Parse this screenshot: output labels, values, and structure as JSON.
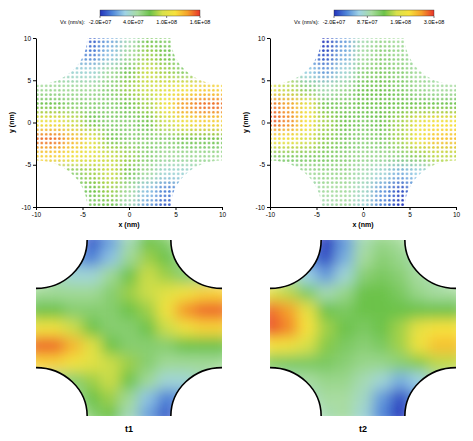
{
  "chart_data": [
    {
      "type": "heatmap",
      "title": "t1",
      "x_label": "x (nm)",
      "y_label": "y (nm)",
      "xlim": [
        -10,
        10
      ],
      "ylim": [
        -10,
        10
      ],
      "xticks": [
        -10,
        -5,
        0,
        5,
        10
      ],
      "yticks": [
        -10,
        -5,
        0,
        5,
        10
      ],
      "x": [
        -10,
        -8,
        -6,
        -4,
        -2,
        0,
        2,
        4,
        6,
        8,
        10
      ],
      "y": [
        10,
        8,
        6,
        4,
        2,
        0,
        -2,
        -4,
        -6,
        -8,
        -10
      ],
      "values": [
        [
          null,
          null,
          null,
          -10000000.0,
          10000000.0,
          40000000.0,
          70000000.0,
          60000000.0,
          null,
          null,
          null
        ],
        [
          null,
          null,
          10000000.0,
          0,
          20000000.0,
          50000000.0,
          80000000.0,
          70000000.0,
          50000000.0,
          null,
          null
        ],
        [
          null,
          40000000.0,
          30000000.0,
          30000000.0,
          50000000.0,
          70000000.0,
          90000000.0,
          80000000.0,
          60000000.0,
          50000000.0,
          null
        ],
        [
          50000000.0,
          50000000.0,
          50000000.0,
          50000000.0,
          60000000.0,
          80000000.0,
          90000000.0,
          100000000.0,
          110000000.0,
          120000000.0,
          120000000.0
        ],
        [
          70000000.0,
          70000000.0,
          60000000.0,
          60000000.0,
          60000000.0,
          70000000.0,
          80000000.0,
          110000000.0,
          140000000.0,
          150000000.0,
          150000000.0
        ],
        [
          110000000.0,
          110000000.0,
          90000000.0,
          70000000.0,
          60000000.0,
          60000000.0,
          70000000.0,
          90000000.0,
          110000000.0,
          120000000.0,
          120000000.0
        ],
        [
          150000000.0,
          150000000.0,
          130000000.0,
          100000000.0,
          70000000.0,
          60000000.0,
          60000000.0,
          60000000.0,
          70000000.0,
          70000000.0,
          70000000.0
        ],
        [
          120000000.0,
          120000000.0,
          110000000.0,
          100000000.0,
          90000000.0,
          80000000.0,
          60000000.0,
          50000000.0,
          50000000.0,
          50000000.0,
          50000000.0
        ],
        [
          null,
          50000000.0,
          60000000.0,
          80000000.0,
          90000000.0,
          70000000.0,
          50000000.0,
          30000000.0,
          30000000.0,
          40000000.0,
          null
        ],
        [
          null,
          null,
          50000000.0,
          70000000.0,
          80000000.0,
          50000000.0,
          20000000.0,
          0,
          10000000.0,
          null,
          null
        ],
        [
          null,
          null,
          null,
          60000000.0,
          70000000.0,
          40000000.0,
          10000000.0,
          -10000000.0,
          null,
          null,
          null
        ]
      ],
      "colorbar": {
        "label": "Vx (nm/s):",
        "range": [
          -20000000.0,
          160000000.0
        ],
        "ticks": [
          {
            "value": -20000000.0,
            "label": "-2.0E+07"
          },
          {
            "value": 40000000.0,
            "label": "4.0E+07"
          },
          {
            "value": 100000000.0,
            "label": "1.0E+08"
          },
          {
            "value": 160000000.0,
            "label": "1.6E+08"
          }
        ]
      }
    },
    {
      "type": "heatmap",
      "title": "t2",
      "x_label": "x (nm)",
      "y_label": "y (nm)",
      "xlim": [
        -10,
        10
      ],
      "ylim": [
        -10,
        10
      ],
      "xticks": [
        -10,
        -5,
        0,
        5,
        10
      ],
      "yticks": [
        -10,
        -5,
        0,
        5,
        10
      ],
      "x": [
        -10,
        -8,
        -6,
        -4,
        -2,
        0,
        2,
        4,
        6,
        8,
        10
      ],
      "y": [
        10,
        8,
        6,
        4,
        2,
        0,
        -2,
        -4,
        -6,
        -8,
        -10
      ],
      "values": [
        [
          null,
          null,
          null,
          -20000000.0,
          30000000.0,
          90000000.0,
          110000000.0,
          100000000.0,
          null,
          null,
          null
        ],
        [
          null,
          null,
          20000000.0,
          -10000000.0,
          40000000.0,
          100000000.0,
          120000000.0,
          110000000.0,
          90000000.0,
          null,
          null
        ],
        [
          null,
          100000000.0,
          60000000.0,
          30000000.0,
          70000000.0,
          120000000.0,
          130000000.0,
          120000000.0,
          100000000.0,
          90000000.0,
          null
        ],
        [
          190000000.0,
          170000000.0,
          130000000.0,
          90000000.0,
          110000000.0,
          140000000.0,
          140000000.0,
          130000000.0,
          110000000.0,
          100000000.0,
          100000000.0
        ],
        [
          280000000.0,
          260000000.0,
          200000000.0,
          140000000.0,
          130000000.0,
          140000000.0,
          140000000.0,
          140000000.0,
          140000000.0,
          140000000.0,
          140000000.0
        ],
        [
          290000000.0,
          270000000.0,
          220000000.0,
          160000000.0,
          140000000.0,
          130000000.0,
          140000000.0,
          160000000.0,
          200000000.0,
          220000000.0,
          220000000.0
        ],
        [
          220000000.0,
          210000000.0,
          180000000.0,
          150000000.0,
          130000000.0,
          120000000.0,
          130000000.0,
          160000000.0,
          210000000.0,
          240000000.0,
          240000000.0
        ],
        [
          130000000.0,
          130000000.0,
          130000000.0,
          130000000.0,
          120000000.0,
          110000000.0,
          110000000.0,
          120000000.0,
          150000000.0,
          170000000.0,
          170000000.0
        ],
        [
          null,
          90000000.0,
          100000000.0,
          110000000.0,
          110000000.0,
          90000000.0,
          70000000.0,
          40000000.0,
          60000000.0,
          100000000.0,
          null
        ],
        [
          null,
          null,
          80000000.0,
          100000000.0,
          100000000.0,
          80000000.0,
          30000000.0,
          -10000000.0,
          30000000.0,
          null,
          null
        ],
        [
          null,
          null,
          null,
          90000000.0,
          100000000.0,
          70000000.0,
          20000000.0,
          -20000000.0,
          null,
          null,
          null
        ]
      ],
      "colorbar": {
        "label": "Vx (nm/s):",
        "range": [
          -20000000.0,
          300000000.0
        ],
        "ticks": [
          {
            "value": -20000000.0,
            "label": "-2.0E+07"
          },
          {
            "value": 86700000,
            "label": "8.7E+07"
          },
          {
            "value": 193300000,
            "label": "1.9E+08"
          },
          {
            "value": 300000000.0,
            "label": "3.0E+08"
          }
        ]
      }
    }
  ]
}
